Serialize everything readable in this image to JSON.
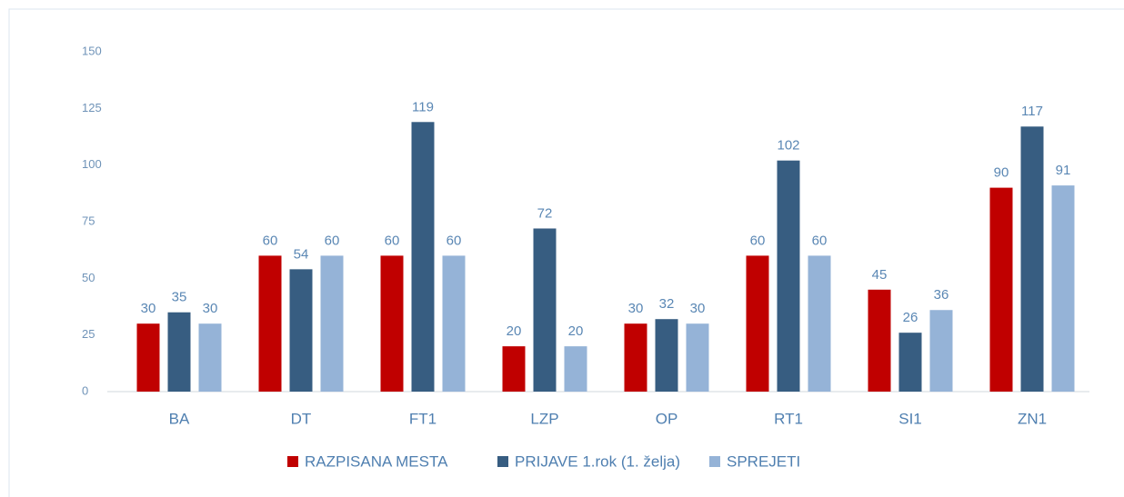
{
  "chart_data": {
    "type": "bar",
    "categories": [
      "BA",
      "DT",
      "FT1",
      "LZP",
      "OP",
      "RT1",
      "SI1",
      "ZN1"
    ],
    "series": [
      {
        "name": "RAZPISANA MESTA",
        "color": "#c00000",
        "values": [
          30,
          60,
          60,
          20,
          30,
          60,
          45,
          90
        ]
      },
      {
        "name": "PRIJAVE 1.rok (1. želja)",
        "color": "#375d81",
        "values": [
          35,
          54,
          119,
          72,
          32,
          102,
          26,
          117
        ]
      },
      {
        "name": "SPREJETI",
        "color": "#95b3d7",
        "values": [
          30,
          60,
          60,
          20,
          30,
          60,
          36,
          91
        ]
      }
    ],
    "ylim": [
      0,
      150
    ],
    "yticks": [
      0,
      25,
      50,
      75,
      100,
      125,
      150
    ],
    "grid": false,
    "legend": "bottom"
  }
}
